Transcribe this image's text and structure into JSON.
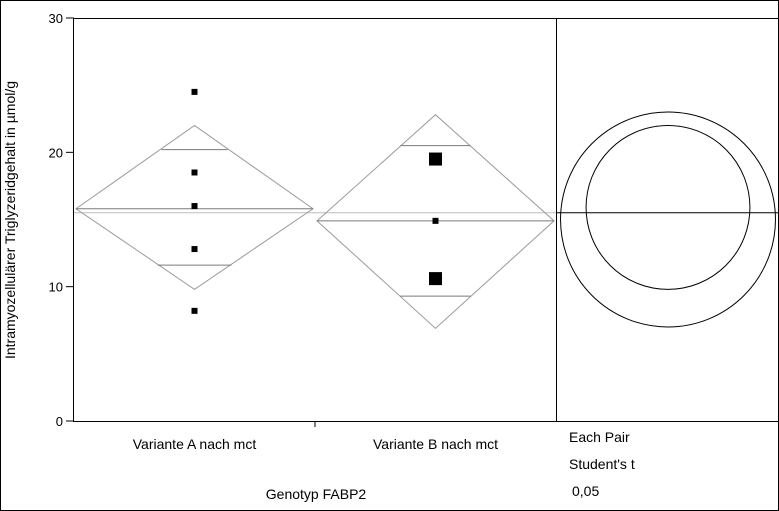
{
  "chart_data": {
    "type": "scatter",
    "subtype": "oneway-anova-means-diamonds",
    "xlabel": "Genotyp FABP2",
    "ylabel": "Intramyozellulärer Triglyzeridgehalt in µmol/g",
    "ylim": [
      0,
      30
    ],
    "yticks": [
      "0",
      "10",
      "20",
      "30"
    ],
    "grand_mean": 15.5,
    "groups": [
      {
        "category": "Variante A nach mct",
        "mean": 15.8,
        "ci": [
          9.8,
          22.0
        ],
        "overlap_marks": [
          11.6,
          20.2
        ],
        "points": [
          {
            "y": 24.5,
            "size": "small"
          },
          {
            "y": 18.5,
            "size": "small"
          },
          {
            "y": 16.0,
            "size": "small"
          },
          {
            "y": 12.8,
            "size": "small"
          },
          {
            "y": 8.2,
            "size": "small"
          }
        ]
      },
      {
        "category": "Variante B nach mct",
        "mean": 14.9,
        "ci": [
          6.9,
          22.8
        ],
        "overlap_marks": [
          9.3,
          20.5
        ],
        "points": [
          {
            "y": 19.5,
            "size": "large"
          },
          {
            "y": 14.9,
            "size": "small"
          },
          {
            "y": 10.6,
            "size": "large"
          }
        ]
      }
    ],
    "comparison": {
      "lines": [
        "Each Pair",
        "Student's t",
        "0,05"
      ],
      "circles": [
        {
          "center": 15.9,
          "radius": 6.1
        },
        {
          "center": 15.0,
          "radius": 8.0
        }
      ]
    }
  }
}
